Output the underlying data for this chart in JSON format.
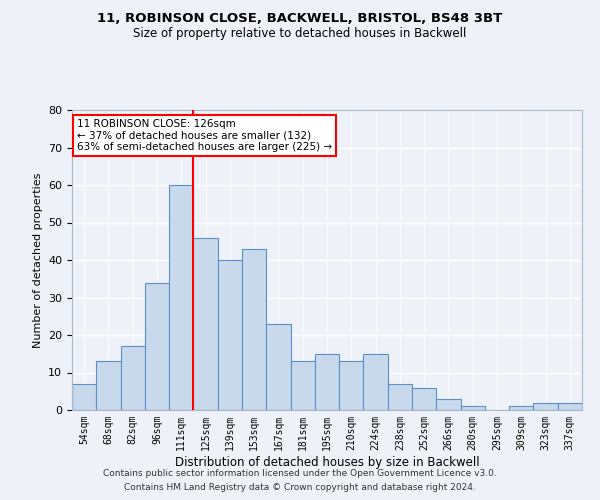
{
  "title1": "11, ROBINSON CLOSE, BACKWELL, BRISTOL, BS48 3BT",
  "title2": "Size of property relative to detached houses in Backwell",
  "xlabel": "Distribution of detached houses by size in Backwell",
  "ylabel": "Number of detached properties",
  "footer1": "Contains HM Land Registry data © Crown copyright and database right 2024.",
  "footer2": "Contains public sector information licensed under the Open Government Licence v3.0.",
  "bar_labels": [
    "54sqm",
    "68sqm",
    "82sqm",
    "96sqm",
    "111sqm",
    "125sqm",
    "139sqm",
    "153sqm",
    "167sqm",
    "181sqm",
    "195sqm",
    "210sqm",
    "224sqm",
    "238sqm",
    "252sqm",
    "266sqm",
    "280sqm",
    "295sqm",
    "309sqm",
    "323sqm",
    "337sqm"
  ],
  "bar_values": [
    7,
    13,
    17,
    34,
    60,
    46,
    40,
    43,
    23,
    13,
    15,
    13,
    15,
    7,
    6,
    3,
    1,
    0,
    1,
    2,
    2
  ],
  "bar_color": "#c8d9ec",
  "bar_edge_color": "#5b8fc7",
  "vline_color": "red",
  "ylim": [
    0,
    80
  ],
  "yticks": [
    0,
    10,
    20,
    30,
    40,
    50,
    60,
    70,
    80
  ],
  "annotation_text": "11 ROBINSON CLOSE: 126sqm\n← 37% of detached houses are smaller (132)\n63% of semi-detached houses are larger (225) →",
  "annotation_box_color": "white",
  "annotation_box_edge": "red",
  "bg_color": "#eef2f8",
  "grid_color": "white"
}
